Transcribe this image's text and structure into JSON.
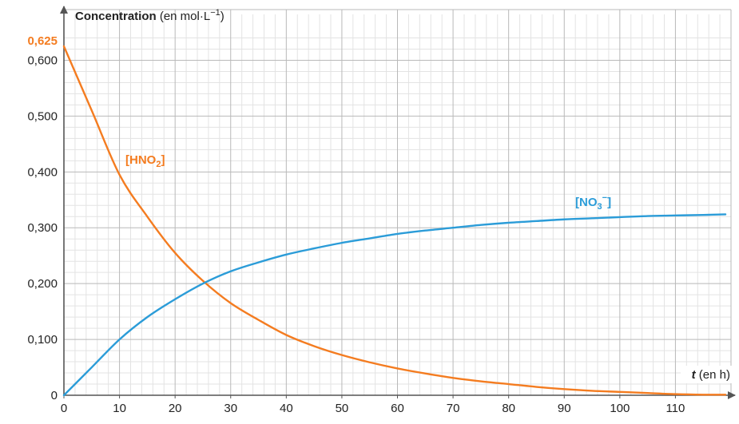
{
  "chart_data": {
    "type": "line",
    "title": "",
    "ylabel": {
      "bold": "Concentration",
      "unit_prefix": " (en mol·L",
      "unit_sup": "−1",
      "unit_suffix": ")"
    },
    "xlabel": {
      "var": "t",
      "unit": " (en h)"
    },
    "xlim": [
      0,
      120
    ],
    "ylim": [
      0,
      0.625
    ],
    "x_ticks": [
      0,
      10,
      20,
      30,
      40,
      50,
      60,
      70,
      80,
      90,
      100,
      110
    ],
    "y_ticks": [
      {
        "value": 0,
        "label": "0"
      },
      {
        "value": 0.1,
        "label": "0,100"
      },
      {
        "value": 0.2,
        "label": "0,200"
      },
      {
        "value": 0.3,
        "label": "0,300"
      },
      {
        "value": 0.4,
        "label": "0,400"
      },
      {
        "value": 0.5,
        "label": "0,500"
      },
      {
        "value": 0.6,
        "label": "0,600"
      }
    ],
    "highlight_tick": {
      "value": 0.625,
      "label": "0,625",
      "color": "#f47c20"
    },
    "grid": "on",
    "series": [
      {
        "name": "HNO2",
        "label_main": "[HNO",
        "label_sub": "2",
        "label_sup": "",
        "label_close": "]",
        "color": "#f47c20",
        "x": [
          0,
          5,
          10,
          15,
          20,
          25,
          30,
          35,
          40,
          45,
          50,
          55,
          60,
          65,
          70,
          75,
          80,
          85,
          90,
          95,
          100,
          105,
          110,
          115,
          119
        ],
        "y": [
          0.625,
          0.51,
          0.395,
          0.32,
          0.255,
          0.205,
          0.165,
          0.135,
          0.108,
          0.088,
          0.072,
          0.059,
          0.048,
          0.039,
          0.031,
          0.025,
          0.02,
          0.015,
          0.011,
          0.008,
          0.006,
          0.004,
          0.002,
          0.001,
          0.001
        ]
      },
      {
        "name": "NO3-",
        "label_main": "[NO",
        "label_sub": "3",
        "label_sup": "−",
        "label_close": "]",
        "color": "#2b9cd8",
        "x": [
          0,
          5,
          10,
          15,
          20,
          25,
          30,
          35,
          40,
          45,
          50,
          55,
          60,
          65,
          70,
          75,
          80,
          85,
          90,
          95,
          100,
          105,
          110,
          115,
          119
        ],
        "y": [
          0,
          0.05,
          0.1,
          0.14,
          0.172,
          0.2,
          0.222,
          0.238,
          0.252,
          0.263,
          0.273,
          0.281,
          0.289,
          0.295,
          0.3,
          0.305,
          0.309,
          0.312,
          0.315,
          0.317,
          0.319,
          0.321,
          0.322,
          0.323,
          0.324
        ]
      }
    ]
  },
  "colors": {
    "grid_major": "#b9b9b9",
    "grid_minor": "#e3e3e3",
    "axis": "#555555"
  }
}
